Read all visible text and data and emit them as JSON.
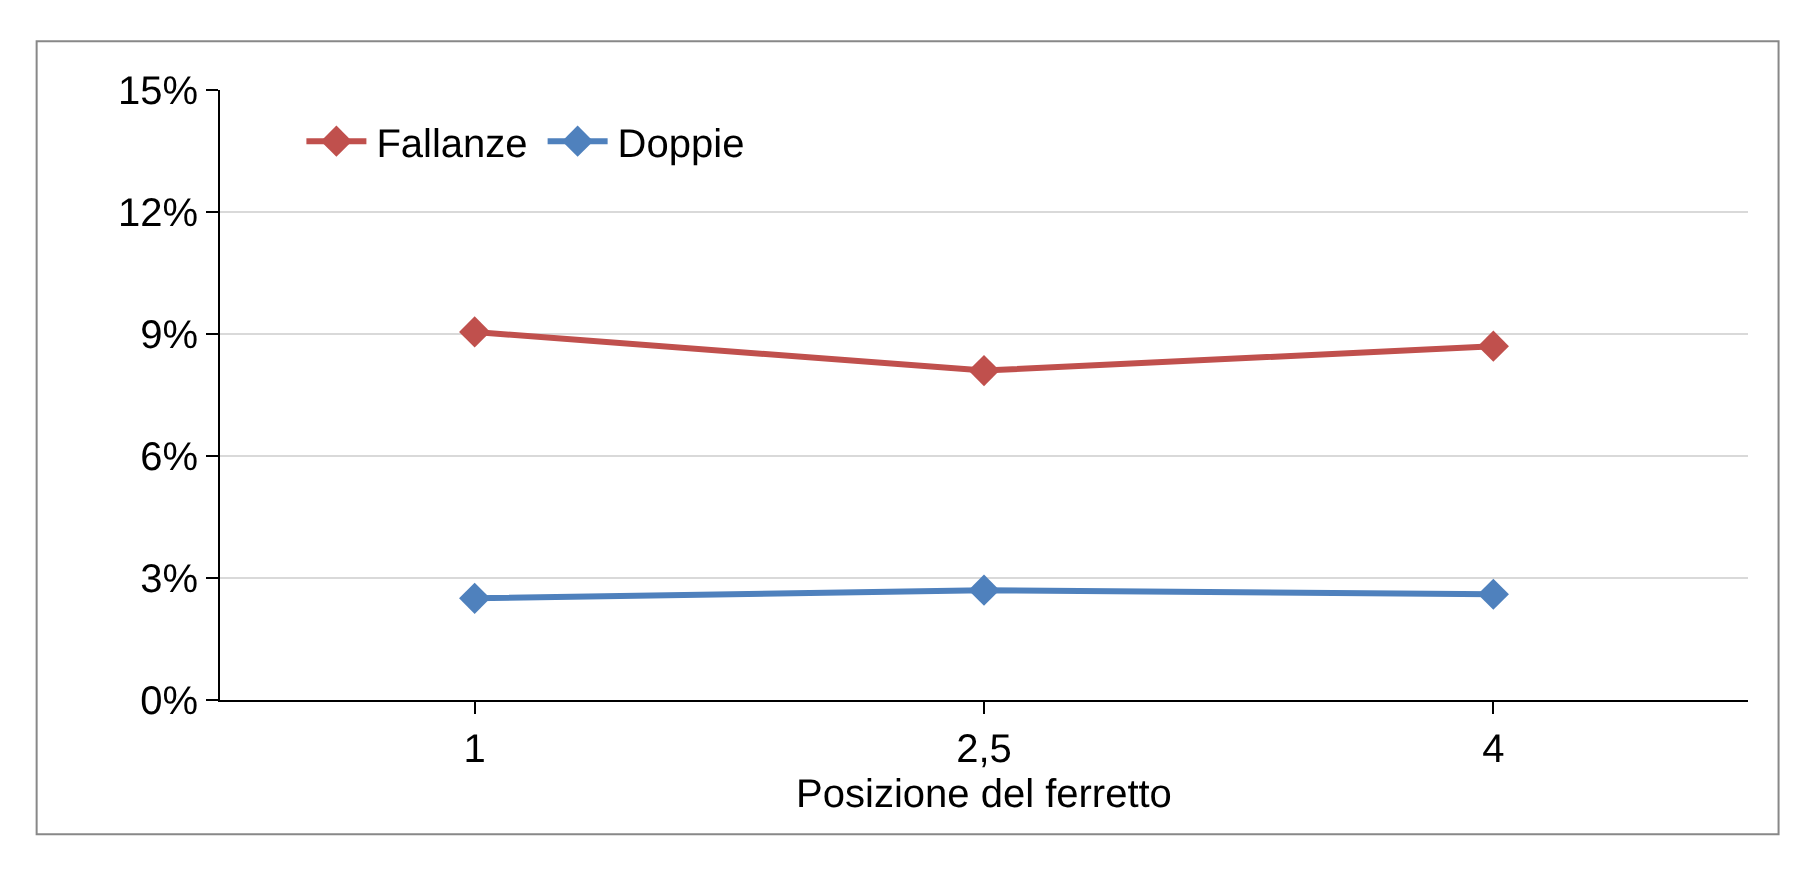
{
  "chart_data": {
    "type": "line",
    "xlabel": "Posizione del ferretto",
    "categories": [
      "1",
      "2,5",
      "4"
    ],
    "series": [
      {
        "name": "Fallanze",
        "color": "#c0504d",
        "values": [
          9.05,
          8.1,
          8.7
        ]
      },
      {
        "name": "Doppie",
        "color": "#4f81bd",
        "values": [
          2.5,
          2.7,
          2.6
        ]
      }
    ],
    "ylim": [
      0,
      15
    ],
    "yticks": [
      {
        "value": 0,
        "label": "0%"
      },
      {
        "value": 3,
        "label": "3%"
      },
      {
        "value": 6,
        "label": "6%"
      },
      {
        "value": 9,
        "label": "9%"
      },
      {
        "value": 12,
        "label": "12%"
      },
      {
        "value": 15,
        "label": "15%"
      }
    ],
    "grid": "y",
    "legend": "top left",
    "marker": "diamond",
    "line_style": "solid"
  }
}
